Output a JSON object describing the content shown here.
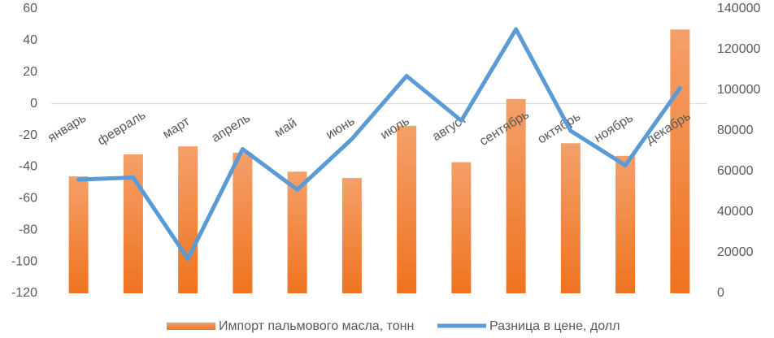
{
  "chart_data": {
    "type": "bar-line",
    "categories": [
      "январь",
      "февраль",
      "март",
      "апрель",
      "май",
      "июнь",
      "июль",
      "август",
      "сентябрь",
      "октябрь",
      "ноябрь",
      "декабрь"
    ],
    "series": [
      {
        "name": "Импорт пальмового масла, тонн",
        "color": "#f07f2c",
        "type": "bar",
        "axis": "y",
        "values": [
          -46,
          -32,
          -27,
          -31,
          -43,
          -47,
          -14,
          -37,
          3,
          -25,
          -33,
          47
        ]
      },
      {
        "name": "Разница в цене, долл",
        "color": "#5b9bd5",
        "type": "line",
        "axis": "y2",
        "values": [
          56000,
          57000,
          17000,
          71000,
          51000,
          76000,
          107000,
          85000,
          130000,
          80000,
          63000,
          101000
        ]
      }
    ],
    "ylim": [
      -120,
      60
    ],
    "yticks": [
      -120,
      -100,
      -80,
      -60,
      -40,
      -20,
      0,
      20,
      40,
      60
    ],
    "y2lim": [
      0,
      140000
    ],
    "y2ticks": [
      0,
      20000,
      40000,
      60000,
      80000,
      100000,
      120000,
      140000
    ],
    "legend": "bottom"
  }
}
